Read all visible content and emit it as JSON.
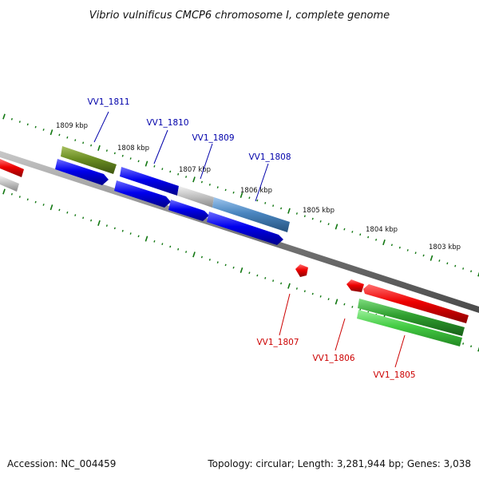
{
  "title": "Vibrio vulnificus CMCP6 chromosome I, complete genome",
  "footer": {
    "accession": "Accession: NC_004459",
    "summary": "Topology: circular; Length: 3,281,944 bp; Genes: 3,038"
  },
  "scale": [
    {
      "label": "1809 kbp"
    },
    {
      "label": "1808 kbp"
    },
    {
      "label": "1807 kbp"
    },
    {
      "label": "1806 kbp"
    },
    {
      "label": "1805 kbp"
    },
    {
      "label": "1804 kbp"
    },
    {
      "label": "1803 kbp"
    }
  ],
  "gene_labels": {
    "vv1_1811": "VV1_1811",
    "vv1_1810": "VV1_1810",
    "vv1_1809": "VV1_1809",
    "vv1_1808": "VV1_1808",
    "vv1_1807": "VV1_1807",
    "vv1_1806": "VV1_1806",
    "vv1_1805": "VV1_1805"
  },
  "colors": {
    "forward_label": "#0000aa",
    "reverse_label": "#cc0000",
    "cds_blue": "#0000ee",
    "cds_red": "#ee0000",
    "cds_green": "#33aa33",
    "cds_olive": "#6b8e23",
    "cds_steel": "#4a86c0",
    "cds_gray": "#c0c0c0",
    "backbone": "#777777",
    "ticks": "#117711"
  }
}
